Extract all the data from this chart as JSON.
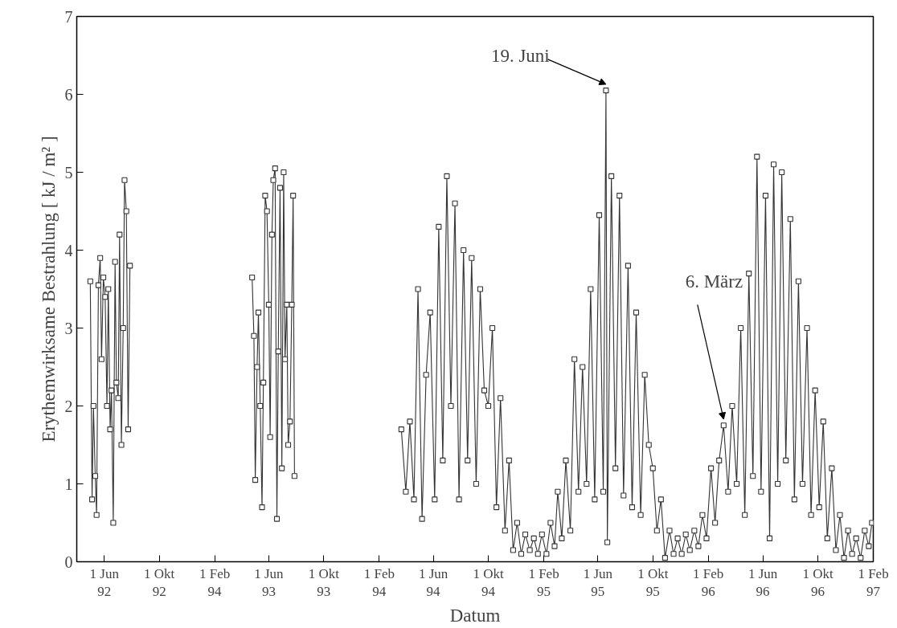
{
  "chart_data": {
    "type": "line",
    "xlabel": "Datum",
    "ylabel": "Erythemwirksame Bestrahlung [ kJ / m² ]",
    "xlim": [
      "1992-04-01",
      "1997-02-01"
    ],
    "ylim": [
      0,
      7
    ],
    "xticks": [
      {
        "value": "1992-06-01",
        "label": "1 Jun\n92"
      },
      {
        "value": "1992-10-01",
        "label": "1 Okt\n92"
      },
      {
        "value": "1993-02-01",
        "label": "1 Feb\n94"
      },
      {
        "value": "1993-06-01",
        "label": "1 Jun\n93"
      },
      {
        "value": "1993-10-01",
        "label": "1 Okt\n93"
      },
      {
        "value": "1994-02-01",
        "label": "1 Feb\n94"
      },
      {
        "value": "1994-06-01",
        "label": "1 Jun\n94"
      },
      {
        "value": "1994-10-01",
        "label": "1 Okt\n94"
      },
      {
        "value": "1995-02-01",
        "label": "1 Feb\n95"
      },
      {
        "value": "1995-06-01",
        "label": "1 Jun\n95"
      },
      {
        "value": "1995-10-01",
        "label": "1 Okt\n95"
      },
      {
        "value": "1996-02-01",
        "label": "1 Feb\n96"
      },
      {
        "value": "1996-06-01",
        "label": "1 Jun\n96"
      },
      {
        "value": "1996-10-01",
        "label": "1 Okt\n96"
      },
      {
        "value": "1997-02-01",
        "label": "1 Feb\n97"
      }
    ],
    "yticks": [
      0,
      1,
      2,
      3,
      4,
      5,
      6,
      7
    ],
    "grid": false,
    "marker": "square",
    "line_style": "solid",
    "annotations": [
      {
        "text": "19. Juni",
        "x": "1995-06-19",
        "y": 6.05
      },
      {
        "text": "6. März",
        "x": "1996-03-06",
        "y": 1.75
      }
    ],
    "series": [
      {
        "color": "#333333",
        "x": [
          "1992-05-01",
          "1992-05-05",
          "1992-05-08",
          "1992-05-12",
          "1992-05-15",
          "1992-05-19",
          "1992-05-23",
          "1992-05-26",
          "1992-05-30",
          "1992-06-03",
          "1992-06-07",
          "1992-06-10",
          "1992-06-14",
          "1992-06-17",
          "1992-06-21",
          "1992-06-25",
          "1992-06-28",
          "1992-07-02",
          "1992-07-05",
          "1992-07-09",
          "1992-07-13",
          "1992-07-16",
          "1992-07-20",
          "1992-07-24",
          "1992-07-28",
          "1992-12-01",
          "1993-04-25",
          "1993-04-29",
          "1993-05-02",
          "1993-05-06",
          "1993-05-09",
          "1993-05-13",
          "1993-05-17",
          "1993-05-20",
          "1993-05-24",
          "1993-05-28",
          "1993-06-01",
          "1993-06-04",
          "1993-06-08",
          "1993-06-11",
          "1993-06-15",
          "1993-06-19",
          "1993-06-22",
          "1993-06-26",
          "1993-06-30",
          "1993-07-04",
          "1993-07-07",
          "1993-07-11",
          "1993-07-14",
          "1993-07-18",
          "1993-07-22",
          "1993-07-25",
          "1993-07-28",
          "1993-11-01",
          "1994-03-22",
          "1994-04-01",
          "1994-04-10",
          "1994-04-19",
          "1994-04-28",
          "1994-05-07",
          "1994-05-16",
          "1994-05-25",
          "1994-06-04",
          "1994-06-13",
          "1994-06-22",
          "1994-07-01",
          "1994-07-10",
          "1994-07-19",
          "1994-07-28",
          "1994-08-07",
          "1994-08-16",
          "1994-08-25",
          "1994-09-04",
          "1994-09-13",
          "1994-09-22",
          "1994-10-01",
          "1994-10-10",
          "1994-10-19",
          "1994-10-28",
          "1994-11-07",
          "1994-11-16",
          "1994-11-25",
          "1994-12-04",
          "1994-12-13",
          "1994-12-22",
          "1995-01-01",
          "1995-01-10",
          "1995-01-19",
          "1995-01-28",
          "1995-02-07",
          "1995-02-16",
          "1995-02-25",
          "1995-03-04",
          "1995-03-13",
          "1995-03-22",
          "1995-04-01",
          "1995-04-10",
          "1995-04-19",
          "1995-04-28",
          "1995-05-07",
          "1995-05-16",
          "1995-05-25",
          "1995-06-04",
          "1995-06-13",
          "1995-06-19",
          "1995-06-22",
          "1995-07-01",
          "1995-07-10",
          "1995-07-19",
          "1995-07-28",
          "1995-08-07",
          "1995-08-16",
          "1995-08-25",
          "1995-09-04",
          "1995-09-13",
          "1995-09-22",
          "1995-10-01",
          "1995-10-10",
          "1995-10-19",
          "1995-10-28",
          "1995-11-07",
          "1995-11-16",
          "1995-11-25",
          "1995-12-04",
          "1995-12-13",
          "1995-12-22",
          "1996-01-01",
          "1996-01-10",
          "1996-01-19",
          "1996-01-28",
          "1996-02-07",
          "1996-02-16",
          "1996-02-25",
          "1996-03-06",
          "1996-03-16",
          "1996-03-25",
          "1996-04-04",
          "1996-04-13",
          "1996-04-22",
          "1996-05-01",
          "1996-05-10",
          "1996-05-19",
          "1996-05-28",
          "1996-06-07",
          "1996-06-16",
          "1996-06-25",
          "1996-07-04",
          "1996-07-13",
          "1996-07-22",
          "1996-08-01",
          "1996-08-10",
          "1996-08-19",
          "1996-08-28",
          "1996-09-07",
          "1996-09-16",
          "1996-09-25",
          "1996-10-04",
          "1996-10-13",
          "1996-10-22",
          "1996-11-01",
          "1996-11-10",
          "1996-11-19",
          "1996-11-28",
          "1996-12-07",
          "1996-12-16",
          "1996-12-25",
          "1997-01-04",
          "1997-01-13",
          "1997-01-22",
          "1997-01-29"
        ],
        "values": [
          3.6,
          0.8,
          2.0,
          1.1,
          0.6,
          3.55,
          3.9,
          2.6,
          3.65,
          3.4,
          2.0,
          3.5,
          1.7,
          2.2,
          0.5,
          3.85,
          2.3,
          2.1,
          4.2,
          1.5,
          3.0,
          4.9,
          4.5,
          1.7,
          3.8,
          null,
          3.65,
          2.9,
          1.05,
          2.5,
          3.2,
          2.0,
          0.7,
          2.3,
          4.7,
          4.5,
          3.3,
          1.6,
          4.2,
          4.9,
          5.05,
          0.55,
          2.7,
          4.8,
          1.2,
          5.0,
          2.6,
          3.3,
          1.5,
          1.8,
          3.3,
          4.7,
          1.1,
          null,
          1.7,
          0.9,
          1.8,
          0.8,
          3.5,
          0.55,
          2.4,
          3.2,
          0.8,
          4.3,
          1.3,
          4.95,
          2.0,
          4.6,
          0.8,
          4.0,
          1.3,
          3.9,
          1.0,
          3.5,
          2.2,
          2.0,
          3.0,
          0.7,
          2.1,
          0.4,
          1.3,
          0.15,
          0.5,
          0.1,
          0.35,
          0.15,
          0.3,
          0.1,
          0.35,
          0.1,
          0.5,
          0.2,
          0.9,
          0.3,
          1.3,
          0.4,
          2.6,
          0.9,
          2.5,
          1.0,
          3.5,
          0.8,
          4.45,
          0.9,
          6.05,
          0.25,
          4.95,
          1.2,
          4.7,
          0.85,
          3.8,
          0.7,
          3.2,
          0.6,
          2.4,
          1.5,
          1.2,
          0.4,
          0.8,
          0.05,
          0.4,
          0.1,
          0.3,
          0.1,
          0.35,
          0.15,
          0.4,
          0.2,
          0.6,
          0.3,
          1.2,
          0.5,
          1.3,
          1.75,
          0.9,
          2.0,
          1.0,
          3.0,
          0.6,
          3.7,
          1.1,
          5.2,
          0.9,
          4.7,
          0.3,
          5.1,
          1.0,
          5.0,
          1.3,
          4.4,
          0.8,
          3.6,
          1.0,
          3.0,
          0.6,
          2.2,
          0.7,
          1.8,
          0.3,
          1.2,
          0.15,
          0.6,
          0.05,
          0.4,
          0.1,
          0.3,
          0.05,
          0.4,
          0.2,
          0.5
        ]
      }
    ]
  }
}
